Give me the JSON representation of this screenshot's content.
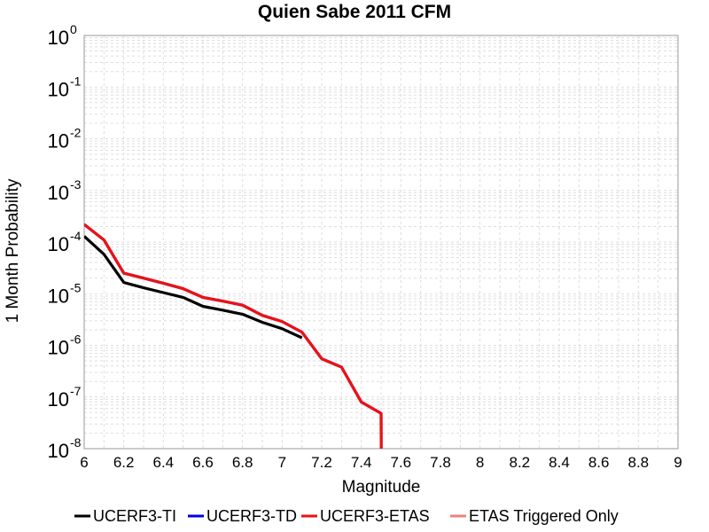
{
  "chart_data": {
    "type": "line",
    "title": "Quien Sabe 2011 CFM",
    "xlabel": "Magnitude",
    "ylabel": "1 Month Probability",
    "xlim": [
      6,
      9
    ],
    "ylim": [
      1e-08,
      1
    ],
    "yscale": "log",
    "grid": true,
    "legend_position": "bottom",
    "x_ticks": [
      "6",
      "6.2",
      "6.4",
      "6.6",
      "6.8",
      "7",
      "7.2",
      "7.4",
      "7.6",
      "7.8",
      "8",
      "8.2",
      "8.4",
      "8.6",
      "8.8",
      "9"
    ],
    "y_ticks": [
      {
        "base": "10",
        "exp": "0"
      },
      {
        "base": "10",
        "exp": "-1"
      },
      {
        "base": "10",
        "exp": "-2"
      },
      {
        "base": "10",
        "exp": "-3"
      },
      {
        "base": "10",
        "exp": "-4"
      },
      {
        "base": "10",
        "exp": "-5"
      },
      {
        "base": "10",
        "exp": "-6"
      },
      {
        "base": "10",
        "exp": "-7"
      },
      {
        "base": "10",
        "exp": "-8"
      }
    ],
    "series": [
      {
        "name": "UCERF3-TI",
        "color": "#000000",
        "x": [
          6.0,
          6.1,
          6.2,
          6.3,
          6.4,
          6.5,
          6.6,
          6.7,
          6.8,
          6.9,
          7.0,
          7.1,
          7.2,
          7.3,
          7.4,
          7.5
        ],
        "y": [
          0.00013,
          5.8e-05,
          1.65e-05,
          1.3e-05,
          1.05e-05,
          8.5e-06,
          5.7e-06,
          4.8e-06,
          4e-06,
          2.8e-06,
          2.1e-06,
          1.4e-06,
          null,
          null,
          null,
          null
        ]
      },
      {
        "name": "UCERF3-TD",
        "color": "#0000ee",
        "x": [
          6.0,
          6.1,
          6.2,
          6.3,
          6.4,
          6.5,
          6.6,
          6.7,
          6.8,
          6.9,
          7.0,
          7.1,
          7.2,
          7.3,
          7.4,
          7.5
        ],
        "y": [
          0.00022,
          0.00011,
          2.5e-05,
          2e-05,
          1.6e-05,
          1.25e-05,
          8.5e-06,
          7.2e-06,
          6e-06,
          3.8e-06,
          2.9e-06,
          1.8e-06,
          5.5e-07,
          3.8e-07,
          8e-08,
          4.8e-08
        ]
      },
      {
        "name": "UCERF3-ETAS",
        "color": "#ee1111",
        "x": [
          6.0,
          6.1,
          6.2,
          6.3,
          6.4,
          6.5,
          6.6,
          6.7,
          6.8,
          6.9,
          7.0,
          7.1,
          7.2,
          7.3,
          7.4,
          7.5
        ],
        "y": [
          0.00022,
          0.00011,
          2.5e-05,
          2e-05,
          1.6e-05,
          1.25e-05,
          8.5e-06,
          7.2e-06,
          6e-06,
          3.8e-06,
          2.9e-06,
          1.8e-06,
          5.5e-07,
          3.8e-07,
          8e-08,
          4.8e-08
        ]
      },
      {
        "name": "ETAS Triggered Only",
        "color": "#f08080",
        "x": [],
        "y": []
      }
    ]
  }
}
